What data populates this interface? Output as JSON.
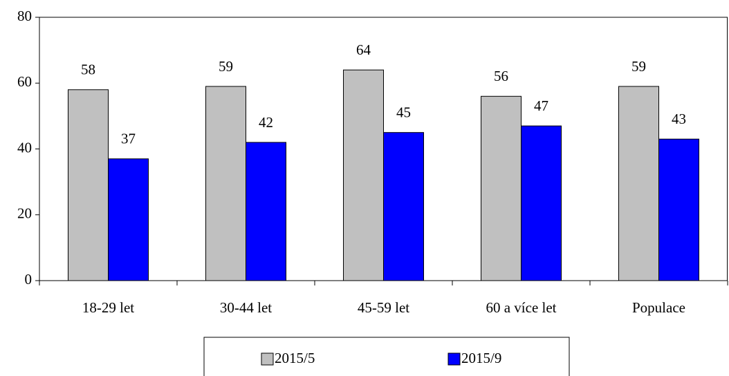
{
  "chart_data": {
    "type": "bar",
    "categories": [
      "18-29 let",
      "30-44 let",
      "45-59 let",
      "60 a více let",
      "Populace"
    ],
    "series": [
      {
        "name": "2015/5",
        "color": "#c0c0c0",
        "values": [
          58,
          59,
          64,
          56,
          59
        ]
      },
      {
        "name": "2015/9",
        "color": "#0000ff",
        "values": [
          37,
          42,
          45,
          47,
          43
        ]
      }
    ],
    "ylim": [
      0,
      80
    ],
    "yticks": [
      0,
      20,
      40,
      60,
      80
    ],
    "grid": false,
    "legend": "bottom"
  }
}
